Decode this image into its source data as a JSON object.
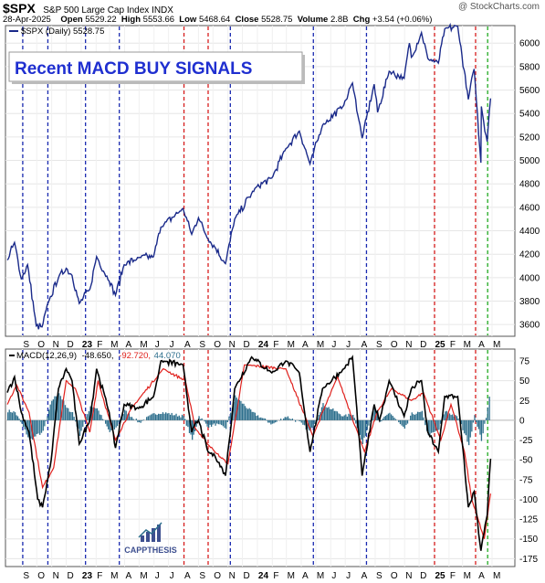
{
  "header": {
    "ticker": "$SPX",
    "index_name": "S&P 500 Large Cap Index  INDX",
    "copyright": "@ StockCharts.com",
    "date": "28-Apr-2025",
    "open_label": "Open",
    "open": "5529.22",
    "high_label": "High",
    "high": "5553.66",
    "low_label": "Low",
    "low": "5468.64",
    "close_label": "Close",
    "close": "5528.75",
    "volume_label": "Volume",
    "volume": "2.8B",
    "chg_label": "Chg",
    "chg": "+3.54 (+0.06%)"
  },
  "price_legend": "$SPX (Daily) 5528.75",
  "banner": "Recent MACD BUY SIGNALS",
  "macd_legend": {
    "name": "MACD(12,26,9)",
    "v1": "-48.650,",
    "v2": "-92.720,",
    "v3": "44.070"
  },
  "logo_text": "CAPPTHESIS",
  "colors": {
    "price": "#1a2a8a",
    "macd": "#000000",
    "signal": "#e0201c",
    "histogram": "#2c6e8c",
    "sell_line": "#d81e1e",
    "buy_line": "#1a2ab0",
    "recent_buy_line": "#22aa22",
    "banner_text": "#1f2fd0"
  },
  "chart_data": [
    {
      "type": "line",
      "series": [
        {
          "name": "$SPX (Daily)",
          "points": [
            [
              "2022-08-01",
              4150
            ],
            [
              "2022-08-16",
              4300
            ],
            [
              "2022-08-30",
              3990
            ],
            [
              "2022-09-12",
              4110
            ],
            [
              "2022-09-30",
              3590
            ],
            [
              "2022-10-12",
              3580
            ],
            [
              "2022-10-27",
              3810
            ],
            [
              "2022-11-15",
              4000
            ],
            [
              "2022-12-01",
              4080
            ],
            [
              "2022-12-13",
              4020
            ],
            [
              "2022-12-28",
              3780
            ],
            [
              "2023-01-19",
              3900
            ],
            [
              "2023-02-02",
              4180
            ],
            [
              "2023-02-28",
              3970
            ],
            [
              "2023-03-13",
              3850
            ],
            [
              "2023-03-31",
              4110
            ],
            [
              "2023-04-30",
              4170
            ],
            [
              "2023-05-31",
              4180
            ],
            [
              "2023-06-15",
              4430
            ],
            [
              "2023-07-31",
              4590
            ],
            [
              "2023-08-18",
              4370
            ],
            [
              "2023-09-01",
              4510
            ],
            [
              "2023-09-21",
              4330
            ],
            [
              "2023-10-05",
              4260
            ],
            [
              "2023-10-27",
              4120
            ],
            [
              "2023-11-15",
              4500
            ],
            [
              "2023-12-29",
              4770
            ],
            [
              "2024-01-31",
              4850
            ],
            [
              "2024-02-29",
              5100
            ],
            [
              "2024-03-28",
              5250
            ],
            [
              "2024-04-19",
              4970
            ],
            [
              "2024-05-15",
              5300
            ],
            [
              "2024-06-28",
              5470
            ],
            [
              "2024-07-16",
              5660
            ],
            [
              "2024-08-05",
              5190
            ],
            [
              "2024-08-30",
              5650
            ],
            [
              "2024-09-06",
              5410
            ],
            [
              "2024-09-30",
              5760
            ],
            [
              "2024-10-31",
              5700
            ],
            [
              "2024-11-11",
              6000
            ],
            [
              "2024-11-15",
              5880
            ],
            [
              "2024-12-06",
              6090
            ],
            [
              "2024-12-19",
              5870
            ],
            [
              "2025-01-10",
              5830
            ],
            [
              "2025-01-23",
              6120
            ],
            [
              "2025-02-19",
              6144
            ],
            [
              "2025-03-13",
              5520
            ],
            [
              "2025-03-25",
              5780
            ],
            [
              "2025-04-08",
              4980
            ],
            [
              "2025-04-09",
              5460
            ],
            [
              "2025-04-21",
              5160
            ],
            [
              "2025-04-28",
              5528.75
            ]
          ]
        }
      ],
      "ylim": [
        3500,
        6150
      ],
      "yticks": [
        3600,
        3800,
        4000,
        4200,
        4400,
        4600,
        4800,
        5000,
        5200,
        5400,
        5600,
        5800,
        6000
      ]
    },
    {
      "type": "line",
      "series": [
        {
          "name": "MACD(12,26,9)",
          "points": [
            [
              "2022-08-01",
              35
            ],
            [
              "2022-08-16",
              55
            ],
            [
              "2022-08-30",
              10
            ],
            [
              "2022-09-15",
              -15
            ],
            [
              "2022-10-03",
              -100
            ],
            [
              "2022-10-13",
              -110
            ],
            [
              "2022-10-31",
              -50
            ],
            [
              "2022-11-15",
              40
            ],
            [
              "2022-12-01",
              65
            ],
            [
              "2022-12-13",
              50
            ],
            [
              "2022-12-28",
              -30
            ],
            [
              "2023-01-19",
              0
            ],
            [
              "2023-02-02",
              65
            ],
            [
              "2023-02-28",
              10
            ],
            [
              "2023-03-13",
              -35
            ],
            [
              "2023-03-31",
              20
            ],
            [
              "2023-04-30",
              15
            ],
            [
              "2023-05-31",
              30
            ],
            [
              "2023-06-15",
              75
            ],
            [
              "2023-07-31",
              70
            ],
            [
              "2023-08-18",
              -15
            ],
            [
              "2023-09-01",
              0
            ],
            [
              "2023-09-21",
              -40
            ],
            [
              "2023-10-05",
              -45
            ],
            [
              "2023-10-27",
              -70
            ],
            [
              "2023-11-15",
              40
            ],
            [
              "2023-12-20",
              80
            ],
            [
              "2024-01-31",
              60
            ],
            [
              "2024-02-29",
              75
            ],
            [
              "2024-03-28",
              60
            ],
            [
              "2024-04-19",
              -40
            ],
            [
              "2024-05-15",
              40
            ],
            [
              "2024-06-28",
              65
            ],
            [
              "2024-07-16",
              80
            ],
            [
              "2024-08-05",
              -70
            ],
            [
              "2024-08-30",
              20
            ],
            [
              "2024-09-10",
              0
            ],
            [
              "2024-09-30",
              50
            ],
            [
              "2024-10-31",
              5
            ],
            [
              "2024-11-15",
              40
            ],
            [
              "2024-12-06",
              50
            ],
            [
              "2024-12-19",
              -15
            ],
            [
              "2025-01-10",
              -40
            ],
            [
              "2025-01-23",
              30
            ],
            [
              "2025-02-19",
              30
            ],
            [
              "2025-03-13",
              -110
            ],
            [
              "2025-03-25",
              -90
            ],
            [
              "2025-04-08",
              -165
            ],
            [
              "2025-04-21",
              -120
            ],
            [
              "2025-04-28",
              -48.65
            ]
          ]
        },
        {
          "name": "Signal",
          "points": [
            [
              "2022-08-01",
              20
            ],
            [
              "2022-08-20",
              45
            ],
            [
              "2022-09-15",
              10
            ],
            [
              "2022-10-13",
              -85
            ],
            [
              "2022-11-05",
              -60
            ],
            [
              "2022-12-01",
              50
            ],
            [
              "2022-12-20",
              40
            ],
            [
              "2023-01-19",
              -15
            ],
            [
              "2023-02-05",
              50
            ],
            [
              "2023-03-13",
              -25
            ],
            [
              "2023-04-15",
              15
            ],
            [
              "2023-06-20",
              65
            ],
            [
              "2023-08-05",
              50
            ],
            [
              "2023-08-25",
              -10
            ],
            [
              "2023-10-05",
              -40
            ],
            [
              "2023-11-01",
              -55
            ],
            [
              "2023-12-05",
              70
            ],
            [
              "2024-02-29",
              65
            ],
            [
              "2024-04-25",
              -20
            ],
            [
              "2024-06-15",
              55
            ],
            [
              "2024-08-10",
              -40
            ],
            [
              "2024-09-05",
              10
            ],
            [
              "2024-10-05",
              40
            ],
            [
              "2024-11-15",
              25
            ],
            [
              "2024-12-10",
              35
            ],
            [
              "2025-01-15",
              -25
            ],
            [
              "2025-02-05",
              20
            ],
            [
              "2025-03-05",
              -40
            ],
            [
              "2025-03-20",
              -100
            ],
            [
              "2025-04-15",
              -150
            ],
            [
              "2025-04-28",
              -92.72
            ]
          ]
        },
        {
          "name": "Histogram",
          "points": [
            [
              "2022-08-01",
              12
            ],
            [
              "2022-08-16",
              10
            ],
            [
              "2022-08-30",
              -5
            ],
            [
              "2022-09-15",
              -25
            ],
            [
              "2022-10-03",
              -18
            ],
            [
              "2022-10-13",
              -15
            ],
            [
              "2022-10-31",
              25
            ],
            [
              "2022-11-15",
              35
            ],
            [
              "2022-12-01",
              15
            ],
            [
              "2022-12-13",
              10
            ],
            [
              "2022-12-28",
              -18
            ],
            [
              "2023-01-19",
              18
            ],
            [
              "2023-02-02",
              15
            ],
            [
              "2023-02-28",
              -15
            ],
            [
              "2023-03-13",
              -10
            ],
            [
              "2023-03-31",
              12
            ],
            [
              "2023-04-30",
              -3
            ],
            [
              "2023-05-31",
              8
            ],
            [
              "2023-06-15",
              10
            ],
            [
              "2023-07-31",
              5
            ],
            [
              "2023-08-18",
              -25
            ],
            [
              "2023-09-01",
              5
            ],
            [
              "2023-09-21",
              -8
            ],
            [
              "2023-10-05",
              -5
            ],
            [
              "2023-10-27",
              -10
            ],
            [
              "2023-11-15",
              30
            ],
            [
              "2023-12-20",
              10
            ],
            [
              "2024-01-31",
              -5
            ],
            [
              "2024-02-29",
              5
            ],
            [
              "2024-03-28",
              -3
            ],
            [
              "2024-04-19",
              -15
            ],
            [
              "2024-05-15",
              20
            ],
            [
              "2024-06-28",
              5
            ],
            [
              "2024-07-16",
              8
            ],
            [
              "2024-08-05",
              -30
            ],
            [
              "2024-08-30",
              18
            ],
            [
              "2024-09-10",
              -3
            ],
            [
              "2024-09-30",
              10
            ],
            [
              "2024-10-31",
              -12
            ],
            [
              "2024-11-15",
              8
            ],
            [
              "2024-12-06",
              10
            ],
            [
              "2024-12-19",
              -20
            ],
            [
              "2025-01-10",
              -12
            ],
            [
              "2025-01-23",
              12
            ],
            [
              "2025-02-19",
              3
            ],
            [
              "2025-03-13",
              -30
            ],
            [
              "2025-03-25",
              5
            ],
            [
              "2025-04-08",
              -25
            ],
            [
              "2025-04-21",
              15
            ],
            [
              "2025-04-28",
              44.07
            ]
          ]
        }
      ],
      "ylim": [
        -185,
        90
      ],
      "yticks": [
        -175,
        -150,
        -125,
        -100,
        -75,
        -50,
        -25,
        0,
        25,
        50,
        75
      ]
    }
  ],
  "signal_lines": [
    {
      "kind": "buy",
      "date": "2022-09-02"
    },
    {
      "kind": "buy",
      "date": "2022-10-24"
    },
    {
      "kind": "buy",
      "date": "2023-01-10"
    },
    {
      "kind": "buy",
      "date": "2023-03-21"
    },
    {
      "kind": "sell",
      "date": "2023-08-02"
    },
    {
      "kind": "sell",
      "date": "2023-09-21"
    },
    {
      "kind": "buy",
      "date": "2023-11-06"
    },
    {
      "kind": "buy",
      "date": "2024-04-26"
    },
    {
      "kind": "buy",
      "date": "2024-08-14"
    },
    {
      "kind": "sell",
      "date": "2025-01-02"
    },
    {
      "kind": "sell",
      "date": "2025-03-28"
    },
    {
      "kind": "recent_buy",
      "date": "2025-04-22"
    }
  ],
  "x_axis": {
    "start": "2022-08-01",
    "end": "2025-05-03",
    "ticks": [
      {
        "label": "S",
        "date": "2022-09-01"
      },
      {
        "label": "O",
        "date": "2022-10-01"
      },
      {
        "label": "N",
        "date": "2022-11-01"
      },
      {
        "label": "D",
        "date": "2022-12-01"
      },
      {
        "label": "23",
        "date": "2023-01-01",
        "bold": true
      },
      {
        "label": "F",
        "date": "2023-02-01"
      },
      {
        "label": "M",
        "date": "2023-03-01"
      },
      {
        "label": "A",
        "date": "2023-04-01"
      },
      {
        "label": "M",
        "date": "2023-05-01"
      },
      {
        "label": "J",
        "date": "2023-06-01"
      },
      {
        "label": "J",
        "date": "2023-07-01"
      },
      {
        "label": "A",
        "date": "2023-08-01"
      },
      {
        "label": "S",
        "date": "2023-09-01"
      },
      {
        "label": "O",
        "date": "2023-10-01"
      },
      {
        "label": "N",
        "date": "2023-11-01"
      },
      {
        "label": "D",
        "date": "2023-12-01"
      },
      {
        "label": "24",
        "date": "2024-01-01",
        "bold": true
      },
      {
        "label": "F",
        "date": "2024-02-01"
      },
      {
        "label": "M",
        "date": "2024-03-01"
      },
      {
        "label": "A",
        "date": "2024-04-01"
      },
      {
        "label": "M",
        "date": "2024-05-01"
      },
      {
        "label": "J",
        "date": "2024-06-01"
      },
      {
        "label": "J",
        "date": "2024-07-01"
      },
      {
        "label": "A",
        "date": "2024-08-01"
      },
      {
        "label": "S",
        "date": "2024-09-01"
      },
      {
        "label": "O",
        "date": "2024-10-01"
      },
      {
        "label": "N",
        "date": "2024-11-01"
      },
      {
        "label": "D",
        "date": "2024-12-01"
      },
      {
        "label": "25",
        "date": "2025-01-01",
        "bold": true
      },
      {
        "label": "F",
        "date": "2025-02-01"
      },
      {
        "label": "M",
        "date": "2025-03-01"
      },
      {
        "label": "A",
        "date": "2025-04-01"
      },
      {
        "label": "M",
        "date": "2025-05-01"
      }
    ]
  }
}
